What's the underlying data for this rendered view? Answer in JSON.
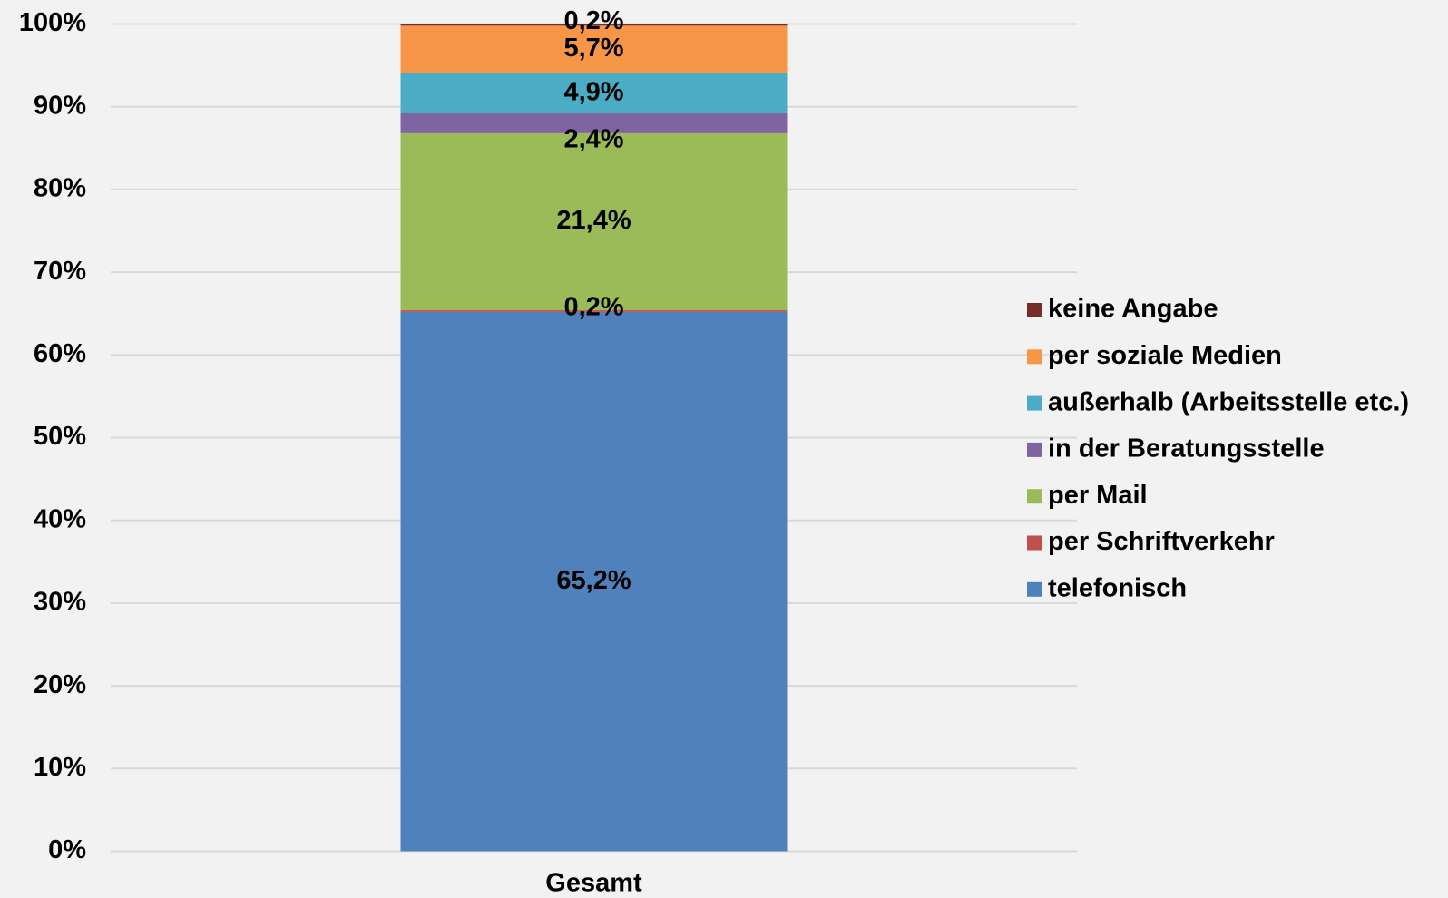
{
  "chart_data": {
    "type": "stacked_bar",
    "categories": [
      "Gesamt"
    ],
    "ylim": [
      0,
      100
    ],
    "yticks": [
      {
        "value": 0,
        "label": "0%"
      },
      {
        "value": 10,
        "label": "10%"
      },
      {
        "value": 20,
        "label": "20%"
      },
      {
        "value": 30,
        "label": "30%"
      },
      {
        "value": 40,
        "label": "40%"
      },
      {
        "value": 50,
        "label": "50%"
      },
      {
        "value": 60,
        "label": "60%"
      },
      {
        "value": 70,
        "label": "70%"
      },
      {
        "value": 80,
        "label": "80%"
      },
      {
        "value": 90,
        "label": "90%"
      },
      {
        "value": 100,
        "label": "100%"
      }
    ],
    "grid": true,
    "legend": "right",
    "series": [
      {
        "name": "telefonisch",
        "color": "#4f81bd",
        "values": [
          65.2
        ],
        "value_labels": [
          "65,2%"
        ]
      },
      {
        "name": "per Schriftverkehr",
        "color": "#c0504d",
        "values": [
          0.2
        ],
        "value_labels": [
          "0,2%"
        ]
      },
      {
        "name": "per Mail",
        "color": "#9bbb59",
        "values": [
          21.4
        ],
        "value_labels": [
          "21,4%"
        ]
      },
      {
        "name": "in der Beratungsstelle",
        "color": "#8064a2",
        "values": [
          2.4
        ],
        "value_labels": [
          "2,4%"
        ]
      },
      {
        "name": "außerhalb (Arbeitsstelle etc.)",
        "color": "#4bacc6",
        "values": [
          4.9
        ],
        "value_labels": [
          "4,9%"
        ]
      },
      {
        "name": "per soziale Medien",
        "color": "#f79646",
        "values": [
          5.7
        ],
        "value_labels": [
          "5,7%"
        ]
      },
      {
        "name": "keine Angabe",
        "color": "#772c2a",
        "values": [
          0.2
        ],
        "value_labels": [
          "0,2%"
        ]
      }
    ]
  }
}
